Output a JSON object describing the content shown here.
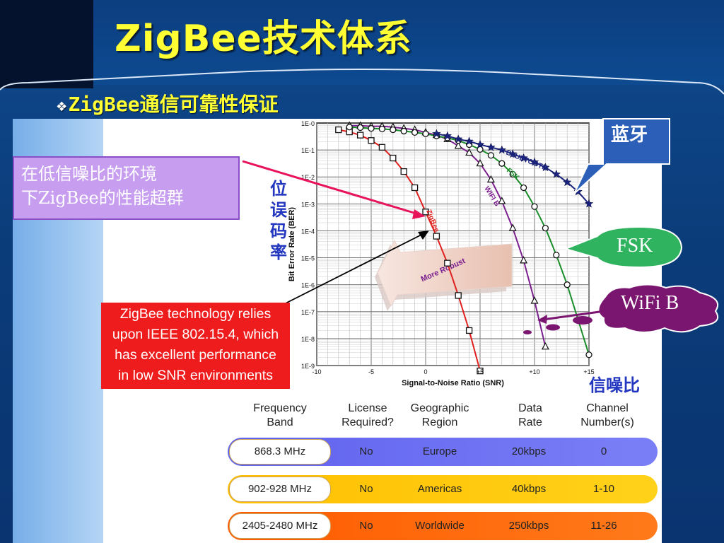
{
  "slide": {
    "title": "ZigBee技术体系",
    "subtitle_bullet": "❖",
    "subtitle": "ZigBee通信可靠性保证"
  },
  "callouts": {
    "low_snr_cn_line1": "在低信噪比的环境",
    "low_snr_cn_line2": "下ZigBee的性能超群",
    "en_line1": "ZigBee technology relies",
    "en_line2": "upon IEEE 802.15.4, which",
    "en_line3": "has excellent performance",
    "en_line4": "in low SNR environments",
    "ber_cn": [
      "位",
      "误",
      "码",
      "率"
    ],
    "snr_cn": "信噪比",
    "bluetooth_cn": "蓝牙",
    "fsk": "FSK",
    "wifi_b": "WiFi B"
  },
  "colors": {
    "title": "#ffff33",
    "zigbee": "#e0201e",
    "wifi": "#7b1f8e",
    "fsk": "#1a8e2a",
    "bluetooth": "#1a237e",
    "callout_cn": "#c79df0",
    "callout_en": "#ee1c1c",
    "bubble_blue": "#2c5fb8",
    "bubble_green": "#2fb35e",
    "bubble_purple": "#7a1670",
    "row_europe": "#6b70f0",
    "row_americas": "#ffc800",
    "row_worldwide": "#ff6a0a"
  },
  "chart_data": {
    "type": "line",
    "xlabel": "Signal-to-Noise Ratio (SNR)",
    "ylabel": "Bit Error Rate (BER)",
    "x_ticks": [
      "-10",
      "-5",
      "0",
      "+5",
      "+10",
      "+15"
    ],
    "y_ticks": [
      "1E-0",
      "1E-1",
      "1E-2",
      "1E-3",
      "1E-4",
      "1E-5",
      "1E-6",
      "1E-7",
      "1E-8",
      "1E-9"
    ],
    "xlim": [
      -10,
      15
    ],
    "ylim_log10": [
      -9,
      0
    ],
    "log_y": true,
    "grid": true,
    "annotation": "More Robust",
    "series": [
      {
        "name": "ZigBee",
        "marker": "square",
        "x": [
          -8,
          -7,
          -6,
          -5,
          -4,
          -3,
          -2,
          -1,
          0,
          1,
          2,
          3,
          4,
          5
        ],
        "log10_y": [
          -0.25,
          -0.33,
          -0.45,
          -0.65,
          -0.9,
          -1.3,
          -1.8,
          -2.4,
          -3.3,
          -4.2,
          -5.2,
          -6.4,
          -7.7,
          -9.2
        ]
      },
      {
        "name": "WiFi B",
        "marker": "triangle",
        "x": [
          -7,
          -6,
          -5,
          -4,
          -3,
          -2,
          -1,
          0,
          1,
          2,
          3,
          4,
          5,
          6,
          7,
          8,
          9,
          10,
          11
        ],
        "log10_y": [
          -0.1,
          -0.1,
          -0.12,
          -0.12,
          -0.15,
          -0.2,
          -0.25,
          -0.35,
          -0.45,
          -0.6,
          -0.85,
          -1.1,
          -1.5,
          -2.1,
          -2.9,
          -3.9,
          -5.1,
          -6.6,
          -8.3
        ]
      },
      {
        "name": "FSK",
        "marker": "circle",
        "x": [
          -7,
          -6,
          -5,
          -4,
          -3,
          -2,
          -1,
          0,
          1,
          2,
          3,
          4,
          5,
          6,
          7,
          8,
          9,
          10,
          11,
          12,
          13,
          14,
          15
        ],
        "log10_y": [
          -0.15,
          -0.17,
          -0.2,
          -0.22,
          -0.25,
          -0.3,
          -0.35,
          -0.4,
          -0.48,
          -0.55,
          -0.65,
          -0.8,
          -0.98,
          -1.2,
          -1.5,
          -1.9,
          -2.4,
          -3.1,
          -3.9,
          -4.9,
          -6.0,
          -7.3,
          -8.6
        ]
      },
      {
        "name": "BLUETOOTH",
        "marker": "star",
        "x": [
          1,
          2,
          3,
          4,
          5,
          6,
          7,
          8,
          9,
          10,
          11,
          12,
          13,
          14,
          15
        ],
        "log10_y": [
          -0.4,
          -0.48,
          -0.6,
          -0.68,
          -0.8,
          -0.9,
          -1.0,
          -1.15,
          -1.3,
          -1.45,
          -1.65,
          -1.9,
          -2.2,
          -2.55,
          -3.0
        ]
      }
    ]
  },
  "table": {
    "headers": [
      [
        "Frequency",
        "Band"
      ],
      [
        "License",
        "Required?"
      ],
      [
        "Geographic",
        "Region"
      ],
      [
        "Data",
        "Rate"
      ],
      [
        "Channel",
        "Number(s)"
      ]
    ],
    "rows": [
      {
        "freq": "868.3 MHz",
        "license": "No",
        "region": "Europe",
        "rate": "20kbps",
        "channels": "0"
      },
      {
        "freq": "902-928 MHz",
        "license": "No",
        "region": "Americas",
        "rate": "40kbps",
        "channels": "1-10"
      },
      {
        "freq": "2405-2480 MHz",
        "license": "No",
        "region": "Worldwide",
        "rate": "250kbps",
        "channels": "11-26"
      }
    ]
  }
}
